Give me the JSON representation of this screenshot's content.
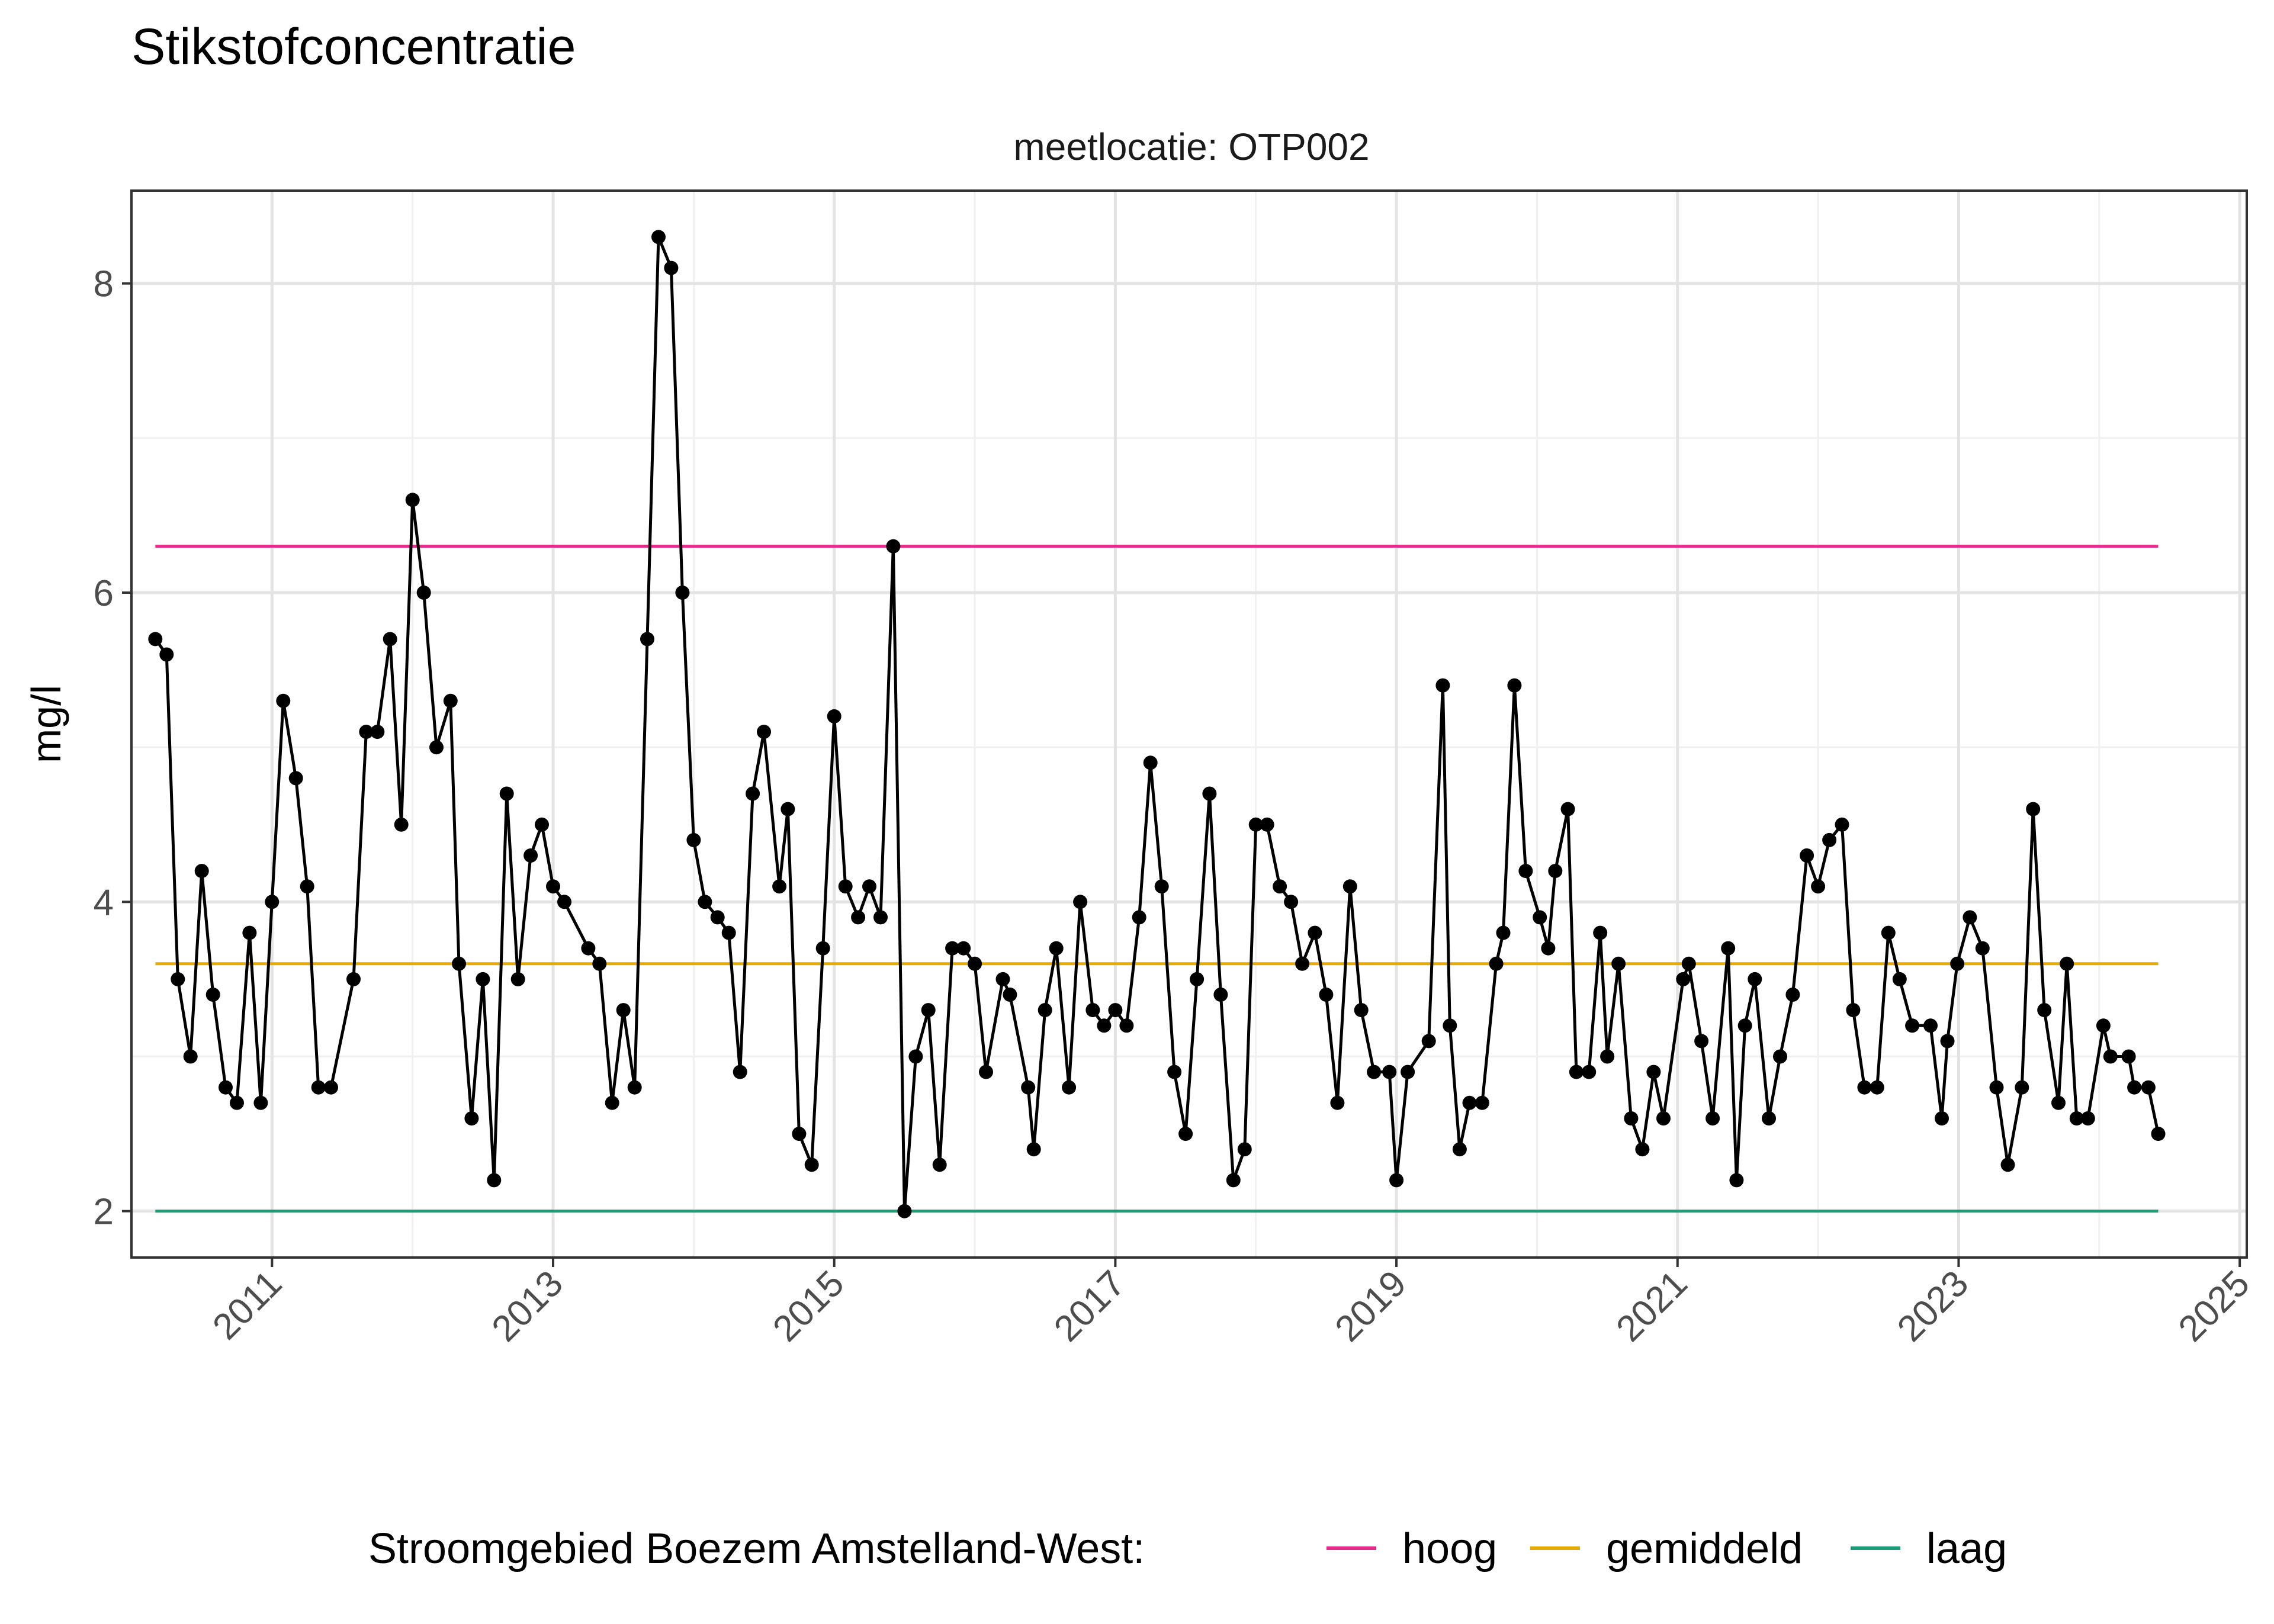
{
  "chart_data": {
    "type": "line",
    "title": "Stikstofconcentratie",
    "subtitle": "meetlocatie: OTP002",
    "xlabel": "",
    "ylabel": "mg/l",
    "xlim": [
      2010.0,
      2025.05
    ],
    "ylim": [
      1.7,
      8.6
    ],
    "grid": true,
    "x_ticks": [
      2011,
      2013,
      2015,
      2017,
      2019,
      2021,
      2023,
      2025
    ],
    "y_ticks": [
      2,
      4,
      6,
      8
    ],
    "legend": {
      "title": "Stroomgebied Boezem Amstelland-West:",
      "position": "bottom"
    },
    "reference_lines": [
      {
        "name": "hoog",
        "value": 6.3,
        "color": "#e7298a"
      },
      {
        "name": "gemiddeld",
        "value": 3.6,
        "color": "#e6ab02"
      },
      {
        "name": "laag",
        "value": 2.0,
        "color": "#1b9e77"
      }
    ],
    "reference_range": [
      2010.17,
      2024.42
    ],
    "series": [
      {
        "color": "#000000",
        "points": [
          [
            2010.17,
            5.7
          ],
          [
            2010.25,
            5.6
          ],
          [
            2010.33,
            3.5
          ],
          [
            2010.42,
            3.0
          ],
          [
            2010.5,
            4.2
          ],
          [
            2010.58,
            3.4
          ],
          [
            2010.67,
            2.8
          ],
          [
            2010.75,
            2.7
          ],
          [
            2010.84,
            3.8
          ],
          [
            2010.92,
            2.7
          ],
          [
            2011.0,
            4.0
          ],
          [
            2011.08,
            5.3
          ],
          [
            2011.17,
            4.8
          ],
          [
            2011.25,
            4.1
          ],
          [
            2011.33,
            2.8
          ],
          [
            2011.42,
            2.8
          ],
          [
            2011.58,
            3.5
          ],
          [
            2011.67,
            5.1
          ],
          [
            2011.75,
            5.1
          ],
          [
            2011.84,
            5.7
          ],
          [
            2011.92,
            4.5
          ],
          [
            2012.0,
            6.6
          ],
          [
            2012.08,
            6.0
          ],
          [
            2012.17,
            5.0
          ],
          [
            2012.27,
            5.3
          ],
          [
            2012.33,
            3.6
          ],
          [
            2012.42,
            2.6
          ],
          [
            2012.5,
            3.5
          ],
          [
            2012.58,
            2.2
          ],
          [
            2012.67,
            4.7
          ],
          [
            2012.75,
            3.5
          ],
          [
            2012.84,
            4.3
          ],
          [
            2012.92,
            4.5
          ],
          [
            2013.0,
            4.1
          ],
          [
            2013.08,
            4.0
          ],
          [
            2013.25,
            3.7
          ],
          [
            2013.33,
            3.6
          ],
          [
            2013.42,
            2.7
          ],
          [
            2013.5,
            3.3
          ],
          [
            2013.58,
            2.8
          ],
          [
            2013.67,
            5.7
          ],
          [
            2013.75,
            8.3
          ],
          [
            2013.84,
            8.1
          ],
          [
            2013.92,
            6.0
          ],
          [
            2014.0,
            4.4
          ],
          [
            2014.08,
            4.0
          ],
          [
            2014.17,
            3.9
          ],
          [
            2014.25,
            3.8
          ],
          [
            2014.33,
            2.9
          ],
          [
            2014.42,
            4.7
          ],
          [
            2014.5,
            5.1
          ],
          [
            2014.61,
            4.1
          ],
          [
            2014.67,
            4.6
          ],
          [
            2014.75,
            2.5
          ],
          [
            2014.84,
            2.3
          ],
          [
            2014.92,
            3.7
          ],
          [
            2015.0,
            5.2
          ],
          [
            2015.08,
            4.1
          ],
          [
            2015.17,
            3.9
          ],
          [
            2015.25,
            4.1
          ],
          [
            2015.33,
            3.9
          ],
          [
            2015.42,
            6.3
          ],
          [
            2015.5,
            2.0
          ],
          [
            2015.58,
            3.0
          ],
          [
            2015.67,
            3.3
          ],
          [
            2015.75,
            2.3
          ],
          [
            2015.84,
            3.7
          ],
          [
            2015.92,
            3.7
          ],
          [
            2016.0,
            3.6
          ],
          [
            2016.08,
            2.9
          ],
          [
            2016.2,
            3.5
          ],
          [
            2016.25,
            3.4
          ],
          [
            2016.38,
            2.8
          ],
          [
            2016.42,
            2.4
          ],
          [
            2016.5,
            3.3
          ],
          [
            2016.58,
            3.7
          ],
          [
            2016.67,
            2.8
          ],
          [
            2016.75,
            4.0
          ],
          [
            2016.84,
            3.3
          ],
          [
            2016.92,
            3.2
          ],
          [
            2017.0,
            3.3
          ],
          [
            2017.08,
            3.2
          ],
          [
            2017.17,
            3.9
          ],
          [
            2017.25,
            4.9
          ],
          [
            2017.33,
            4.1
          ],
          [
            2017.42,
            2.9
          ],
          [
            2017.5,
            2.5
          ],
          [
            2017.58,
            3.5
          ],
          [
            2017.67,
            4.7
          ],
          [
            2017.75,
            3.4
          ],
          [
            2017.84,
            2.2
          ],
          [
            2017.92,
            2.4
          ],
          [
            2018.0,
            4.5
          ],
          [
            2018.08,
            4.5
          ],
          [
            2018.17,
            4.1
          ],
          [
            2018.25,
            4.0
          ],
          [
            2018.33,
            3.6
          ],
          [
            2018.42,
            3.8
          ],
          [
            2018.5,
            3.4
          ],
          [
            2018.58,
            2.7
          ],
          [
            2018.67,
            4.1
          ],
          [
            2018.75,
            3.3
          ],
          [
            2018.84,
            2.9
          ],
          [
            2018.95,
            2.9
          ],
          [
            2019.0,
            2.2
          ],
          [
            2019.08,
            2.9
          ],
          [
            2019.23,
            3.1
          ],
          [
            2019.33,
            5.4
          ],
          [
            2019.38,
            3.2
          ],
          [
            2019.45,
            2.4
          ],
          [
            2019.52,
            2.7
          ],
          [
            2019.61,
            2.7
          ],
          [
            2019.71,
            3.6
          ],
          [
            2019.76,
            3.8
          ],
          [
            2019.84,
            5.4
          ],
          [
            2019.92,
            4.2
          ],
          [
            2020.02,
            3.9
          ],
          [
            2020.08,
            3.7
          ],
          [
            2020.13,
            4.2
          ],
          [
            2020.22,
            4.6
          ],
          [
            2020.28,
            2.9
          ],
          [
            2020.37,
            2.9
          ],
          [
            2020.45,
            3.8
          ],
          [
            2020.5,
            3.0
          ],
          [
            2020.58,
            3.6
          ],
          [
            2020.67,
            2.6
          ],
          [
            2020.75,
            2.4
          ],
          [
            2020.83,
            2.9
          ],
          [
            2020.9,
            2.6
          ],
          [
            2021.04,
            3.5
          ],
          [
            2021.08,
            3.6
          ],
          [
            2021.17,
            3.1
          ],
          [
            2021.25,
            2.6
          ],
          [
            2021.36,
            3.7
          ],
          [
            2021.42,
            2.2
          ],
          [
            2021.48,
            3.2
          ],
          [
            2021.55,
            3.5
          ],
          [
            2021.65,
            2.6
          ],
          [
            2021.73,
            3.0
          ],
          [
            2021.82,
            3.4
          ],
          [
            2021.92,
            4.3
          ],
          [
            2022.0,
            4.1
          ],
          [
            2022.08,
            4.4
          ],
          [
            2022.17,
            4.5
          ],
          [
            2022.25,
            3.3
          ],
          [
            2022.33,
            2.8
          ],
          [
            2022.42,
            2.8
          ],
          [
            2022.5,
            3.8
          ],
          [
            2022.58,
            3.5
          ],
          [
            2022.67,
            3.2
          ],
          [
            2022.8,
            3.2
          ],
          [
            2022.88,
            2.6
          ],
          [
            2022.92,
            3.1
          ],
          [
            2022.99,
            3.6
          ],
          [
            2023.08,
            3.9
          ],
          [
            2023.17,
            3.7
          ],
          [
            2023.27,
            2.8
          ],
          [
            2023.35,
            2.3
          ],
          [
            2023.45,
            2.8
          ],
          [
            2023.53,
            4.6
          ],
          [
            2023.61,
            3.3
          ],
          [
            2023.71,
            2.7
          ],
          [
            2023.77,
            3.6
          ],
          [
            2023.84,
            2.6
          ],
          [
            2023.92,
            2.6
          ],
          [
            2024.03,
            3.2
          ],
          [
            2024.08,
            3.0
          ],
          [
            2024.21,
            3.0
          ],
          [
            2024.25,
            2.8
          ],
          [
            2024.35,
            2.8
          ],
          [
            2024.42,
            2.5
          ]
        ]
      }
    ]
  }
}
